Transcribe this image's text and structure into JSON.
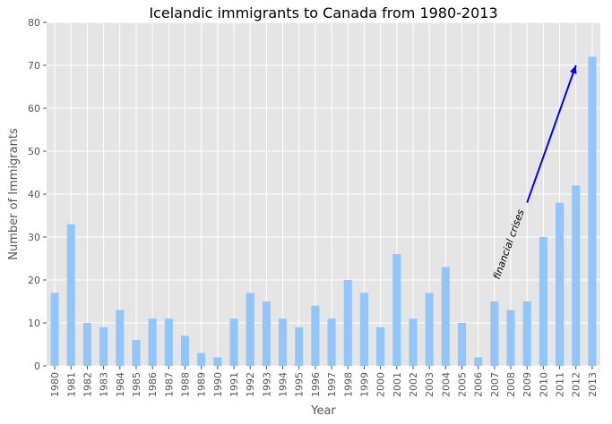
{
  "chart_data": {
    "type": "bar",
    "title": "Icelandic immigrants to Canada from 1980-2013",
    "xlabel": "Year",
    "ylabel": "Number of Immigrants",
    "categories": [
      "1980",
      "1981",
      "1982",
      "1983",
      "1984",
      "1985",
      "1986",
      "1987",
      "1988",
      "1989",
      "1990",
      "1991",
      "1992",
      "1993",
      "1994",
      "1995",
      "1996",
      "1997",
      "1998",
      "1999",
      "2000",
      "2001",
      "2002",
      "2003",
      "2004",
      "2005",
      "2006",
      "2007",
      "2008",
      "2009",
      "2010",
      "2011",
      "2012",
      "2013"
    ],
    "values": [
      17,
      33,
      10,
      9,
      13,
      6,
      11,
      11,
      7,
      3,
      2,
      11,
      17,
      15,
      11,
      9,
      14,
      11,
      20,
      17,
      9,
      26,
      11,
      17,
      23,
      10,
      2,
      15,
      13,
      15,
      30,
      38,
      42,
      72
    ],
    "ylim": [
      0,
      80
    ],
    "yticks": [
      0,
      10,
      20,
      30,
      40,
      50,
      60,
      70,
      80
    ],
    "grid": true,
    "bar_color": "#92c5f9",
    "background_color": "#e5e5e5",
    "annotation": {
      "text": "financial crises",
      "arrow_from": {
        "x": "2009",
        "y": 38
      },
      "arrow_to": {
        "x": "2012",
        "y": 70
      },
      "arrow_color": "#0000ff"
    }
  }
}
